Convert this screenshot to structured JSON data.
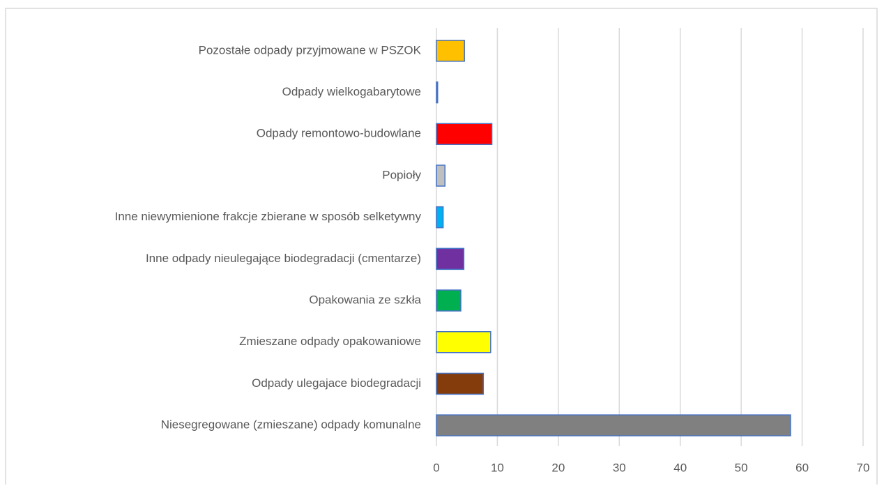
{
  "chart_data": {
    "type": "barh",
    "categories": [
      "Pozostałe odpady przyjmowane w PSZOK",
      "Odpady wielkogabarytowe",
      "Odpady remontowo-budowlane",
      "Popioły",
      "Inne niewymienione frakcje zbierane w sposób selketywny",
      "Inne odpady nieulegające biodegradacji (cmentarze)",
      "Opakowania ze szkła",
      "Zmieszane odpady opakowaniowe",
      "Odpady ulegajace biodegradacji",
      "Niesegregowane (zmieszane) odpady komunalne"
    ],
    "values": [
      4.6,
      0.2,
      9.1,
      1.4,
      1.1,
      4.5,
      4.0,
      8.9,
      7.7,
      58.1
    ],
    "colors": [
      "#ffc000",
      "#4472c4",
      "#ff0000",
      "#bfbfbf",
      "#00b0f0",
      "#7030a0",
      "#00b050",
      "#ffff00",
      "#843c0c",
      "#808080"
    ],
    "edge_color": "#4472c4",
    "xlim": [
      0,
      70
    ],
    "xticks": [
      0,
      10,
      20,
      30,
      40,
      50,
      60,
      70
    ],
    "grid": true
  }
}
